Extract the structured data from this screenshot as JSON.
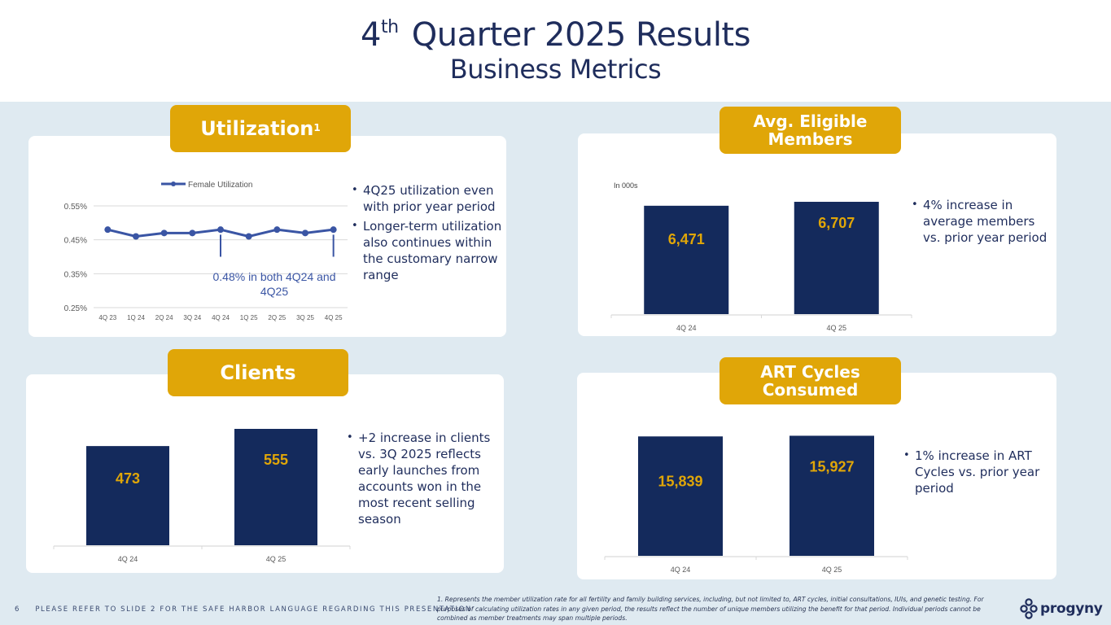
{
  "header": {
    "title_prefix": "4",
    "title_sup": "th",
    "title_rest": "Quarter 2025 Results",
    "subtitle": "Business Metrics"
  },
  "colors": {
    "navy": "#142a5c",
    "gold": "#e0a608",
    "line_blue": "#3a55a4",
    "background": "#dfeaf1"
  },
  "panels": {
    "utilization": {
      "badge": "Utilization",
      "badge_sup": "1",
      "bullets": [
        "4Q25 utilization even with prior year period",
        "Longer-term utilization also continues within the customary narrow range"
      ]
    },
    "members": {
      "badge_line1": "Avg. Eligible",
      "badge_line2": "Members",
      "bullets": [
        "4% increase in average members vs. prior year period"
      ]
    },
    "clients": {
      "badge": "Clients",
      "bullets": [
        "+2 increase in clients vs. 3Q 2025 reflects early launches from accounts won in the most recent selling season"
      ]
    },
    "art": {
      "badge_line1": "ART Cycles",
      "badge_line2": "Consumed",
      "bullets": [
        "1% increase in ART Cycles vs. prior year period"
      ]
    }
  },
  "chart_data": [
    {
      "id": "utilization",
      "type": "line",
      "title": "",
      "legend": [
        "Female Utilization"
      ],
      "legend_position": "top",
      "categories": [
        "4Q 23",
        "1Q 24",
        "2Q 24",
        "3Q 24",
        "4Q 24",
        "1Q 25",
        "2Q 25",
        "3Q 25",
        "4Q 25"
      ],
      "series": [
        {
          "name": "Female Utilization",
          "values": [
            0.48,
            0.46,
            0.47,
            0.47,
            0.48,
            0.46,
            0.48,
            0.47,
            0.48
          ]
        }
      ],
      "yticks": [
        "0.25%",
        "0.35%",
        "0.45%",
        "0.55%"
      ],
      "ylim": [
        0.25,
        0.55
      ],
      "grid": true,
      "annotation": "0.48% in both 4Q24 and 4Q25",
      "annotation_line1": "0.48% in both 4Q24 and",
      "annotation_line2": "4Q25",
      "annotated_categories": [
        "4Q 24",
        "4Q 25"
      ]
    },
    {
      "id": "members",
      "type": "bar",
      "ylabel": "In 000s",
      "categories": [
        "4Q 24",
        "4Q 25"
      ],
      "values": [
        6471,
        6707
      ],
      "labels": [
        "6,471",
        "6,707"
      ],
      "ylim": [
        0,
        6900
      ]
    },
    {
      "id": "clients",
      "type": "bar",
      "categories": [
        "4Q 24",
        "4Q 25"
      ],
      "values": [
        473,
        555
      ],
      "labels": [
        "473",
        "555"
      ],
      "ylim": [
        0,
        555
      ]
    },
    {
      "id": "art",
      "type": "bar",
      "categories": [
        "4Q 24",
        "4Q 25"
      ],
      "values": [
        15839,
        15927
      ],
      "labels": [
        "15,839",
        "15,927"
      ],
      "ylim": [
        0,
        16300
      ]
    }
  ],
  "footer": {
    "page_number": "6",
    "safe_harbor": "PLEASE REFER TO SLIDE 2 FOR THE SAFE HARBOR LANGUAGE REGARDING THIS PRESENTATION",
    "footnote": "1. Represents the member utilization rate for all fertility and family building services, including, but not limited to, ART cycles, initial consultations, IUIs, and genetic testing. For purposes of calculating utilization rates in any given period, the results reflect the number of unique members utilizing the benefit for that period. Individual periods cannot be combined as member treatments may span multiple periods.",
    "logo_text": "progyny",
    "logo_icon": "progyny-knot-icon"
  }
}
